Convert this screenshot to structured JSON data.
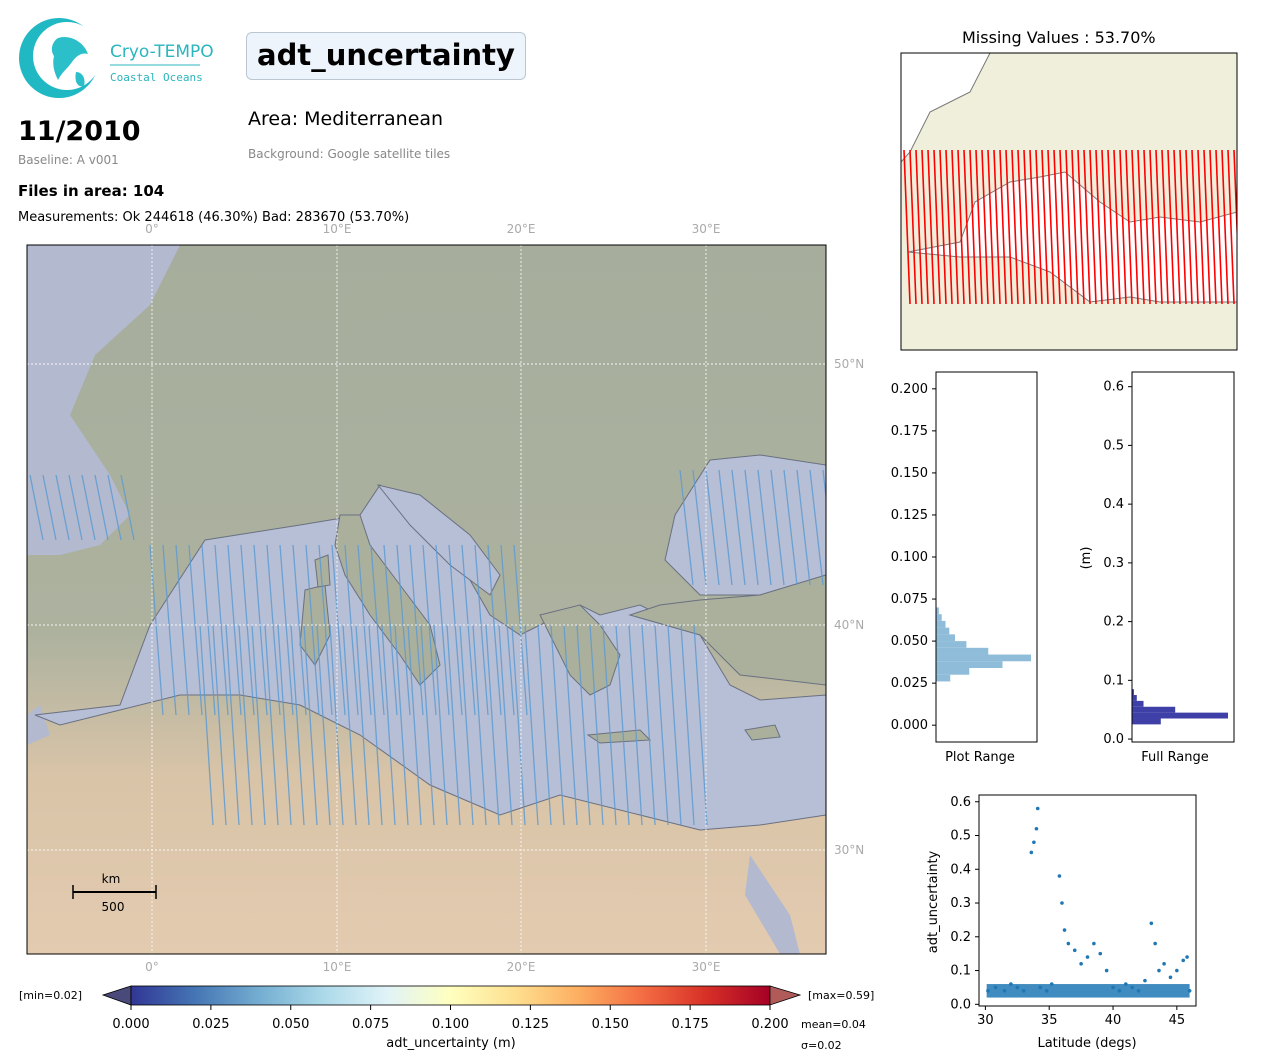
{
  "logo": {
    "title": "Cryo-TEMPO",
    "subtitle": "Coastal Oceans"
  },
  "header": {
    "variable": "adt_uncertainty",
    "date": "11/2010",
    "baseline": "Baseline: A v001",
    "area": "Area: Mediterranean",
    "background": "Background: Google satellite tiles",
    "files": "Files in area: 104",
    "measurements": "Measurements: Ok 244618 (46.30%) Bad: 283670 (53.70%)"
  },
  "map": {
    "lon_labels": [
      "0°",
      "10°E",
      "20°E",
      "30°E"
    ],
    "lat_labels": [
      "50°N",
      "40°N",
      "30°N"
    ],
    "scale_unit": "km",
    "scale_value": "500"
  },
  "colorbar": {
    "min_label": "[min=0.02]",
    "max_label": "[max=0.59]",
    "ticks": [
      "0.000",
      "0.025",
      "0.050",
      "0.075",
      "0.100",
      "0.125",
      "0.150",
      "0.175",
      "0.200"
    ],
    "label": "adt_uncertainty (m)",
    "mean": "mean=0.04",
    "sigma": "σ=0.02"
  },
  "missing_panel": {
    "title": "Missing Values : 53.70%"
  },
  "chart_data": [
    {
      "type": "bar",
      "orientation": "horizontal",
      "xlabel": "Plot Range",
      "ylabel": "",
      "ylim": [
        -0.01,
        0.21
      ],
      "yticks": [
        "0.000",
        "0.025",
        "0.050",
        "0.075",
        "0.100",
        "0.125",
        "0.150",
        "0.175",
        "0.200"
      ],
      "bins": [
        0.026,
        0.03,
        0.034,
        0.038,
        0.042,
        0.046,
        0.05,
        0.054,
        0.058,
        0.062,
        0.066
      ],
      "values": [
        0.15,
        0.35,
        0.7,
        1.0,
        0.55,
        0.32,
        0.2,
        0.14,
        0.1,
        0.06,
        0.03
      ]
    },
    {
      "type": "bar",
      "orientation": "horizontal",
      "xlabel": "Full Range",
      "ylabel": "(m)",
      "ylim": [
        -0.005,
        0.625
      ],
      "yticks": [
        "0.0",
        "0.1",
        "0.2",
        "0.3",
        "0.4",
        "0.5",
        "0.6"
      ],
      "bins": [
        0.025,
        0.035,
        0.045,
        0.055,
        0.065,
        0.075
      ],
      "values": [
        0.3,
        1.0,
        0.45,
        0.12,
        0.05,
        0.02
      ]
    },
    {
      "type": "scatter",
      "xlabel": "Latitude (degs)",
      "ylabel": "adt_uncertainty",
      "xlim": [
        29.5,
        46.5
      ],
      "ylim": [
        -0.005,
        0.62
      ],
      "xticks": [
        "30",
        "35",
        "40",
        "45"
      ],
      "yticks": [
        "0.0",
        "0.1",
        "0.2",
        "0.3",
        "0.4",
        "0.5",
        "0.6"
      ],
      "series": [
        {
          "points": [
            [
              30.2,
              0.04
            ],
            [
              30.8,
              0.05
            ],
            [
              31.5,
              0.04
            ],
            [
              32.0,
              0.06
            ],
            [
              32.5,
              0.05
            ],
            [
              33.0,
              0.04
            ],
            [
              33.6,
              0.45
            ],
            [
              33.8,
              0.48
            ],
            [
              34.0,
              0.52
            ],
            [
              34.1,
              0.58
            ],
            [
              34.3,
              0.05
            ],
            [
              34.8,
              0.04
            ],
            [
              35.2,
              0.06
            ],
            [
              35.8,
              0.38
            ],
            [
              36.0,
              0.3
            ],
            [
              36.2,
              0.22
            ],
            [
              36.5,
              0.18
            ],
            [
              37.0,
              0.16
            ],
            [
              37.5,
              0.12
            ],
            [
              38.0,
              0.14
            ],
            [
              38.5,
              0.18
            ],
            [
              39.0,
              0.15
            ],
            [
              39.5,
              0.1
            ],
            [
              40.0,
              0.05
            ],
            [
              40.5,
              0.04
            ],
            [
              41.0,
              0.06
            ],
            [
              41.5,
              0.05
            ],
            [
              42.0,
              0.04
            ],
            [
              42.5,
              0.07
            ],
            [
              43.0,
              0.24
            ],
            [
              43.3,
              0.18
            ],
            [
              43.6,
              0.1
            ],
            [
              44.0,
              0.12
            ],
            [
              44.5,
              0.08
            ],
            [
              45.0,
              0.1
            ],
            [
              45.5,
              0.13
            ],
            [
              45.8,
              0.14
            ],
            [
              46.0,
              0.04
            ]
          ]
        }
      ]
    }
  ]
}
